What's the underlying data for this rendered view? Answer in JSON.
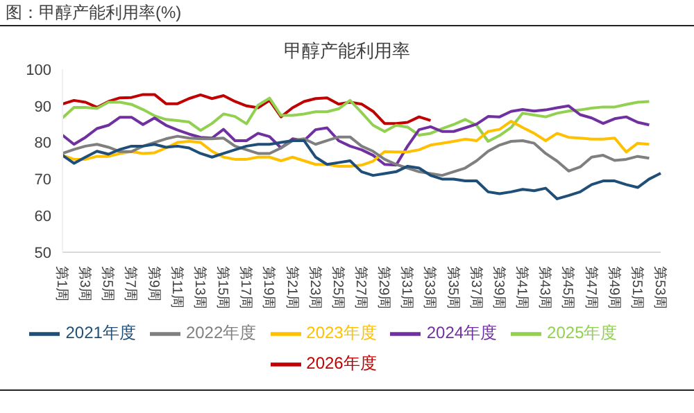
{
  "chart_data": {
    "type": "line",
    "title": "图：甲醇产能利用率(%)",
    "subtitle": "甲醇产能利用率",
    "categories": [
      "第1周",
      null,
      "第3周",
      null,
      "第5周",
      null,
      "第7周",
      null,
      "第9周",
      null,
      "第11周",
      null,
      "第13周",
      null,
      "第15周",
      null,
      "第17周",
      null,
      "第19周",
      null,
      "第21周",
      null,
      "第23周",
      null,
      "第25周",
      null,
      "第27周",
      null,
      "第29周",
      null,
      "第31周",
      null,
      "第33周",
      null,
      "第35周",
      null,
      "第37周",
      null,
      "第39周",
      null,
      "第41周",
      null,
      "第43周",
      null,
      "第45周",
      null,
      "第47周",
      null,
      "第49周",
      null,
      "第51周",
      null,
      "第53周"
    ],
    "series": [
      {
        "name": "2026年度",
        "color": "#c00000",
        "values": [
          90.5,
          91.5,
          91,
          89.6,
          91.2,
          92.2,
          92.3,
          93.1,
          93.1,
          90.6,
          90.6,
          92,
          93,
          92,
          92.8,
          91.2,
          90,
          89.5,
          91.5,
          87,
          89.5,
          91.2,
          92,
          92.2,
          90.5,
          91,
          90.5,
          88.5,
          85.2,
          85.2,
          85.5,
          87,
          86,
          null,
          null,
          null,
          null,
          null,
          null,
          null,
          null,
          null,
          null,
          null,
          null,
          null,
          null,
          null,
          null,
          null,
          null,
          null,
          null
        ]
      },
      {
        "name": "2025年度",
        "color": "#92d050",
        "values": [
          86.7,
          89.6,
          89.6,
          89.3,
          91,
          91,
          90.4,
          89,
          87.3,
          86.3,
          86,
          85.6,
          83.3,
          85.2,
          87.8,
          87.1,
          85.1,
          90.2,
          92.1,
          87.4,
          87.4,
          87.8,
          88.4,
          88.4,
          89.2,
          91.5,
          88.2,
          84.7,
          83,
          84.7,
          84.2,
          82,
          82.5,
          83.8,
          84.9,
          86.3,
          84.7,
          80.3,
          81.9,
          84.1,
          88,
          87.5,
          87,
          88,
          88.6,
          88.9,
          89.4,
          89.7,
          89.7,
          90.4,
          91,
          91.2,
          null
        ]
      },
      {
        "name": "2024年度",
        "color": "#7030a0",
        "values": [
          82,
          79.5,
          81.4,
          83.8,
          84.7,
          86.9,
          86.9,
          84.9,
          86.7,
          84.7,
          83.4,
          82.3,
          81.4,
          81.2,
          83.6,
          80.5,
          80.5,
          82.5,
          81.6,
          78.5,
          81,
          80.5,
          83.5,
          84,
          80.5,
          79,
          78,
          76.5,
          74,
          73.8,
          79,
          83.5,
          84.3,
          83,
          83,
          84,
          85,
          87.1,
          87,
          88.5,
          89,
          88.6,
          88.9,
          89.5,
          90,
          87.6,
          86.7,
          85.2,
          86.5,
          87,
          85.5,
          84.8,
          null
        ]
      },
      {
        "name": "2023年度",
        "color": "#ffc000",
        "values": [
          76.5,
          75.4,
          75.4,
          76.2,
          76.2,
          77,
          77.5,
          77,
          77.2,
          78.5,
          80,
          80.3,
          80,
          77.6,
          76,
          75.4,
          75.4,
          76,
          76,
          75,
          76,
          75,
          74,
          74,
          73.5,
          73.5,
          73.8,
          74.9,
          77.5,
          77.4,
          77.4,
          78,
          79.3,
          79.8,
          80.3,
          80.9,
          80.5,
          83,
          83.6,
          85.8,
          84.1,
          82.5,
          80.5,
          82.5,
          81.4,
          81.2,
          80.9,
          80.9,
          81.2,
          77.4,
          79.8,
          79.5,
          null
        ]
      },
      {
        "name": "2022年度",
        "color": "#7f7f7f",
        "values": [
          77,
          78.1,
          79,
          79.5,
          78.7,
          77.5,
          77.5,
          79,
          80,
          81,
          81.7,
          81.2,
          81,
          81,
          81.2,
          79,
          78,
          77,
          77,
          78.5,
          80.5,
          81,
          79.5,
          80.5,
          81.5,
          81.5,
          79,
          77.6,
          75.4,
          74,
          73,
          72,
          71.5,
          71,
          72,
          73,
          75,
          77.6,
          79.3,
          80.3,
          80.5,
          79.8,
          77,
          74.9,
          72.2,
          73.3,
          76,
          76.5,
          75.1,
          75.4,
          76.2,
          75.7,
          null
        ]
      },
      {
        "name": "2021年度",
        "color": "#1f4e79",
        "values": [
          76.5,
          74.3,
          76,
          77.6,
          76.8,
          78.1,
          79,
          79,
          79.5,
          78.7,
          79,
          78.5,
          77,
          76,
          77,
          78,
          79,
          79.5,
          79.5,
          80,
          80.5,
          80.5,
          76,
          74,
          74.5,
          75,
          72,
          71,
          71.5,
          72,
          73.5,
          73,
          71,
          70,
          70,
          69.5,
          69.5,
          66.5,
          66,
          66.5,
          67.2,
          66.8,
          67.5,
          64.6,
          65.5,
          66.5,
          68.5,
          69.5,
          69.5,
          68.5,
          67.7,
          70,
          71.6
        ]
      }
    ],
    "ylim": [
      50,
      100
    ],
    "yticks": [
      50,
      60,
      70,
      80,
      90,
      100
    ],
    "legend": "bottom"
  }
}
